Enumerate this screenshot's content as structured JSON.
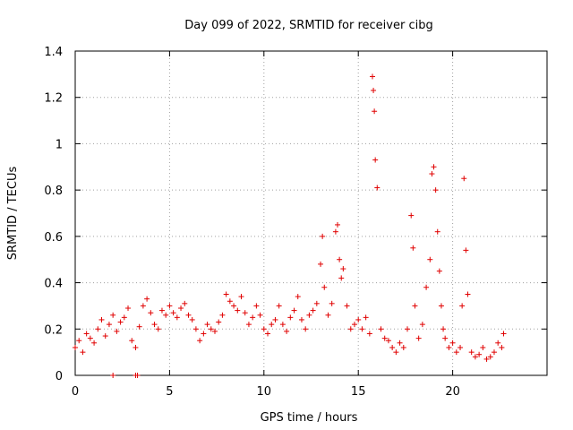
{
  "chart_data": {
    "type": "scatter",
    "title": "Day 099 of 2022, SRMTID for receiver cibg",
    "xlabel": "GPS time / hours",
    "ylabel": "SRMTID / TECUs",
    "xlim": [
      0,
      25
    ],
    "ylim": [
      0,
      1.4
    ],
    "xticks": [
      0,
      5,
      10,
      15,
      20
    ],
    "xtick_labels": [
      "0",
      "5",
      "10",
      "15",
      "20"
    ],
    "yticks": [
      0,
      0.2,
      0.4,
      0.6,
      0.8,
      1.0,
      1.2,
      1.4
    ],
    "ytick_labels": [
      "0",
      "0.2",
      "0.4",
      "0.6",
      "0.8",
      "1",
      "1.2",
      "1.4"
    ],
    "grid": true,
    "marker": "+",
    "marker_color": "#e00000",
    "series": [
      {
        "name": "SRMTID",
        "x": [
          0.0,
          0.2,
          0.4,
          0.6,
          0.8,
          1.0,
          1.2,
          1.4,
          1.6,
          1.8,
          2.0,
          2.2,
          2.4,
          2.6,
          2.8,
          3.0,
          3.2,
          3.4,
          3.6,
          3.8,
          4.0,
          4.2,
          4.4,
          4.6,
          4.8,
          5.0,
          5.2,
          5.4,
          5.6,
          5.8,
          6.0,
          6.2,
          6.4,
          6.6,
          6.8,
          7.0,
          7.2,
          7.4,
          7.6,
          7.8,
          8.0,
          8.2,
          8.4,
          8.6,
          8.8,
          9.0,
          9.2,
          9.4,
          9.6,
          9.8,
          10.0,
          10.2,
          10.4,
          10.6,
          10.8,
          11.0,
          11.2,
          11.4,
          11.6,
          11.8,
          12.0,
          12.2,
          12.4,
          12.6,
          12.8,
          13.0,
          13.1,
          13.2,
          13.4,
          13.6,
          13.8,
          13.9,
          14.0,
          14.1,
          14.2,
          14.4,
          14.6,
          14.8,
          15.0,
          15.2,
          15.4,
          15.6,
          15.75,
          15.8,
          15.85,
          15.9,
          16.0,
          16.2,
          16.4,
          16.6,
          16.8,
          17.0,
          17.2,
          17.4,
          17.6,
          17.8,
          17.9,
          18.0,
          18.2,
          18.4,
          18.6,
          18.8,
          18.9,
          19.0,
          19.1,
          19.2,
          19.3,
          19.4,
          19.5,
          19.6,
          19.8,
          20.0,
          20.2,
          20.4,
          20.5,
          20.6,
          20.7,
          20.8,
          21.0,
          21.2,
          21.4,
          21.6,
          21.8,
          22.0,
          22.2,
          22.4,
          22.6,
          22.7,
          2.0,
          3.2,
          3.3
        ],
        "y": [
          0.12,
          0.15,
          0.1,
          0.18,
          0.16,
          0.14,
          0.2,
          0.24,
          0.17,
          0.22,
          0.26,
          0.19,
          0.23,
          0.25,
          0.29,
          0.15,
          0.12,
          0.21,
          0.3,
          0.33,
          0.27,
          0.22,
          0.2,
          0.28,
          0.26,
          0.3,
          0.27,
          0.25,
          0.29,
          0.31,
          0.26,
          0.24,
          0.2,
          0.15,
          0.18,
          0.22,
          0.2,
          0.19,
          0.23,
          0.26,
          0.35,
          0.32,
          0.3,
          0.28,
          0.34,
          0.27,
          0.22,
          0.25,
          0.3,
          0.26,
          0.2,
          0.18,
          0.22,
          0.24,
          0.3,
          0.22,
          0.19,
          0.25,
          0.28,
          0.34,
          0.24,
          0.2,
          0.26,
          0.28,
          0.31,
          0.48,
          0.6,
          0.38,
          0.26,
          0.31,
          0.62,
          0.65,
          0.5,
          0.42,
          0.46,
          0.3,
          0.2,
          0.22,
          0.24,
          0.2,
          0.25,
          0.18,
          1.29,
          1.23,
          1.14,
          0.93,
          0.81,
          0.2,
          0.16,
          0.15,
          0.12,
          0.1,
          0.14,
          0.12,
          0.2,
          0.69,
          0.55,
          0.3,
          0.16,
          0.22,
          0.38,
          0.5,
          0.87,
          0.9,
          0.8,
          0.62,
          0.45,
          0.3,
          0.2,
          0.16,
          0.12,
          0.14,
          0.1,
          0.12,
          0.3,
          0.85,
          0.54,
          0.35,
          0.1,
          0.08,
          0.09,
          0.12,
          0.07,
          0.08,
          0.1,
          0.14,
          0.12,
          0.18,
          0.0,
          0.0,
          0.0
        ]
      }
    ]
  }
}
